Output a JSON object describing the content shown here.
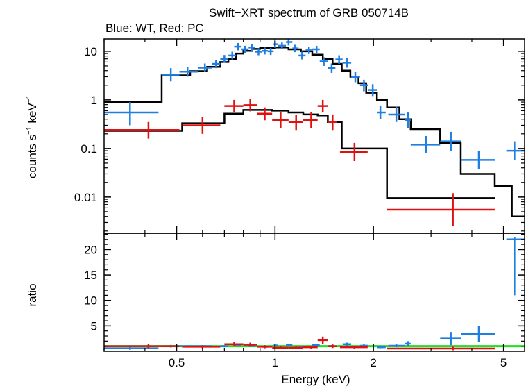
{
  "chart_data": [
    {
      "type": "scatter",
      "panel": "spectrum",
      "title": "Swift−XRT spectrum of GRB 050714B",
      "subtitle": "Blue: WT, Red: PC",
      "xlabel": "Energy (keV)",
      "ylabel_main": "counts s",
      "ylabel_exp1": "−1",
      "ylabel_mid": " keV",
      "ylabel_exp2": "−1",
      "xscale": "log",
      "yscale": "log",
      "xlim": [
        0.3,
        5.8
      ],
      "ylim": [
        0.0018,
        18
      ],
      "x_ticks": [
        {
          "value": 0.5,
          "label": "0.5"
        },
        {
          "value": 1,
          "label": "1"
        },
        {
          "value": 2,
          "label": "2"
        },
        {
          "value": 5,
          "label": "5"
        }
      ],
      "y_ticks": [
        {
          "value": 10,
          "label": "10"
        },
        {
          "value": 1,
          "label": "1"
        },
        {
          "value": 0.1,
          "label": "0.1"
        },
        {
          "value": 0.01,
          "label": "0.01"
        }
      ],
      "series": [
        {
          "name": "WT",
          "color": "#1f7fe0",
          "points": [
            [
              0.36,
              0.3,
              0.44,
              0.55,
              0.3,
              0.9
            ],
            [
              0.48,
              0.45,
              0.51,
              3.3,
              2.4,
              4.5
            ],
            [
              0.54,
              0.51,
              0.58,
              3.8,
              3.0,
              4.8
            ],
            [
              0.61,
              0.58,
              0.64,
              4.6,
              3.8,
              5.6
            ],
            [
              0.66,
              0.64,
              0.68,
              5.5,
              4.5,
              6.6
            ],
            [
              0.7,
              0.68,
              0.72,
              7.0,
              5.8,
              8.4
            ],
            [
              0.74,
              0.72,
              0.76,
              8.2,
              6.8,
              9.8
            ],
            [
              0.77,
              0.75,
              0.79,
              12.5,
              10.5,
              14.8
            ],
            [
              0.81,
              0.79,
              0.83,
              11.0,
              9.2,
              13.0
            ],
            [
              0.85,
              0.83,
              0.87,
              12.0,
              10.2,
              14.0
            ],
            [
              0.89,
              0.87,
              0.91,
              9.8,
              8.3,
              11.5
            ],
            [
              0.93,
              0.91,
              0.95,
              10.2,
              8.6,
              12.0
            ],
            [
              0.97,
              0.95,
              0.99,
              10.0,
              8.4,
              11.8
            ],
            [
              1.0,
              0.99,
              1.02,
              14.0,
              11.8,
              16.5
            ],
            [
              1.05,
              1.02,
              1.08,
              13.0,
              11.0,
              15.2
            ],
            [
              1.1,
              1.08,
              1.13,
              15.5,
              13.2,
              18.0
            ],
            [
              1.15,
              1.13,
              1.18,
              11.5,
              9.6,
              13.6
            ],
            [
              1.21,
              1.18,
              1.24,
              8.2,
              6.8,
              9.8
            ],
            [
              1.27,
              1.24,
              1.3,
              10.5,
              8.8,
              12.4
            ],
            [
              1.34,
              1.3,
              1.37,
              11.0,
              9.2,
              13.0
            ],
            [
              1.41,
              1.37,
              1.45,
              6.2,
              5.0,
              7.6
            ],
            [
              1.49,
              1.45,
              1.53,
              4.5,
              3.6,
              5.6
            ],
            [
              1.57,
              1.53,
              1.61,
              6.8,
              5.5,
              8.3
            ],
            [
              1.66,
              1.61,
              1.71,
              5.8,
              4.6,
              7.2
            ],
            [
              1.76,
              1.71,
              1.82,
              3.0,
              2.3,
              3.8
            ],
            [
              1.87,
              1.82,
              1.93,
              2.0,
              1.5,
              2.6
            ],
            [
              1.99,
              1.93,
              2.05,
              1.6,
              1.2,
              2.1
            ],
            [
              2.1,
              2.05,
              2.18,
              0.55,
              0.4,
              0.75
            ],
            [
              2.35,
              2.22,
              2.5,
              0.5,
              0.35,
              0.72
            ],
            [
              2.55,
              2.5,
              2.6,
              0.38,
              0.26,
              0.55
            ],
            [
              2.9,
              2.6,
              3.2,
              0.12,
              0.08,
              0.18
            ],
            [
              3.45,
              3.2,
              3.7,
              0.14,
              0.09,
              0.22
            ],
            [
              4.2,
              3.7,
              4.7,
              0.058,
              0.038,
              0.09
            ],
            [
              5.4,
              5.1,
              5.8,
              0.09,
              0.058,
              0.14
            ]
          ]
        },
        {
          "name": "PC",
          "color": "#e01010",
          "points": [
            [
              0.41,
              0.3,
              0.51,
              0.24,
              0.16,
              0.35
            ],
            [
              0.6,
              0.52,
              0.68,
              0.3,
              0.2,
              0.45
            ],
            [
              0.75,
              0.7,
              0.8,
              0.75,
              0.55,
              1.0
            ],
            [
              0.84,
              0.8,
              0.88,
              0.78,
              0.58,
              1.05
            ],
            [
              0.93,
              0.88,
              0.98,
              0.52,
              0.38,
              0.7
            ],
            [
              1.04,
              0.98,
              1.1,
              0.38,
              0.26,
              0.55
            ],
            [
              1.16,
              1.1,
              1.22,
              0.35,
              0.24,
              0.5
            ],
            [
              1.29,
              1.22,
              1.35,
              0.38,
              0.26,
              0.55
            ],
            [
              1.4,
              1.35,
              1.45,
              0.75,
              0.55,
              1.0
            ],
            [
              1.5,
              1.45,
              1.55,
              0.35,
              0.24,
              0.5
            ],
            [
              1.75,
              1.58,
              1.92,
              0.085,
              0.055,
              0.13
            ],
            [
              3.5,
              2.2,
              4.7,
              0.0055,
              0.0025,
              0.012
            ]
          ]
        }
      ],
      "models": [
        {
          "name": "WT model",
          "color": "#000000",
          "steps": [
            [
              0.3,
              0.9
            ],
            [
              0.45,
              3.2
            ],
            [
              0.55,
              3.9
            ],
            [
              0.62,
              4.8
            ],
            [
              0.68,
              6.0
            ],
            [
              0.72,
              7.0
            ],
            [
              0.76,
              9.0
            ],
            [
              0.8,
              10.2
            ],
            [
              0.85,
              11.2
            ],
            [
              0.9,
              11.8
            ],
            [
              1.0,
              12.0
            ],
            [
              1.1,
              11.0
            ],
            [
              1.2,
              10.0
            ],
            [
              1.3,
              8.5
            ],
            [
              1.4,
              7.0
            ],
            [
              1.5,
              5.5
            ],
            [
              1.6,
              4.0
            ],
            [
              1.7,
              3.0
            ],
            [
              1.8,
              2.2
            ],
            [
              1.9,
              1.4
            ],
            [
              2.05,
              1.0
            ],
            [
              2.2,
              0.7
            ],
            [
              2.4,
              0.4
            ],
            [
              2.6,
              0.25
            ],
            [
              3.2,
              0.13
            ],
            [
              3.7,
              0.03
            ],
            [
              4.7,
              0.017
            ],
            [
              5.3,
              0.004
            ]
          ],
          "end": 5.8
        },
        {
          "name": "PC model",
          "color": "#000000",
          "steps": [
            [
              0.3,
              0.23
            ],
            [
              0.52,
              0.33
            ],
            [
              0.7,
              0.52
            ],
            [
              0.8,
              0.62
            ],
            [
              0.98,
              0.6
            ],
            [
              1.1,
              0.55
            ],
            [
              1.22,
              0.5
            ],
            [
              1.35,
              0.48
            ],
            [
              1.45,
              0.35
            ],
            [
              1.6,
              0.1
            ],
            [
              2.2,
              0.0095
            ]
          ],
          "end": 4.7
        }
      ]
    },
    {
      "type": "scatter",
      "panel": "ratio",
      "ylabel": "ratio",
      "xscale": "log",
      "yscale": "linear",
      "xlim": [
        0.3,
        5.8
      ],
      "ylim": [
        0,
        23.2
      ],
      "y_ticks": [
        {
          "value": 5,
          "label": "5"
        },
        {
          "value": 10,
          "label": "10"
        },
        {
          "value": 15,
          "label": "15"
        },
        {
          "value": 20,
          "label": "20"
        }
      ],
      "reference_line": {
        "value": 1,
        "color": "#22dd22"
      },
      "series": [
        {
          "name": "WT",
          "color": "#1f7fe0",
          "points": [
            [
              0.36,
              0.3,
              0.44,
              0.6,
              0.3,
              0.9
            ],
            [
              0.48,
              0.45,
              0.51,
              1.0,
              0.75,
              1.25
            ],
            [
              0.54,
              0.51,
              0.58,
              1.0,
              0.8,
              1.2
            ],
            [
              0.61,
              0.58,
              0.64,
              1.0,
              0.8,
              1.2
            ],
            [
              0.7,
              0.68,
              0.72,
              1.0,
              0.8,
              1.2
            ],
            [
              0.77,
              0.75,
              0.79,
              1.2,
              1.0,
              1.4
            ],
            [
              0.85,
              0.83,
              0.87,
              1.05,
              0.9,
              1.2
            ],
            [
              0.93,
              0.91,
              0.95,
              0.9,
              0.75,
              1.05
            ],
            [
              1.0,
              0.99,
              1.02,
              1.15,
              0.95,
              1.35
            ],
            [
              1.1,
              1.08,
              1.13,
              1.3,
              1.1,
              1.5
            ],
            [
              1.21,
              1.18,
              1.24,
              0.85,
              0.7,
              1.0
            ],
            [
              1.34,
              1.3,
              1.37,
              1.2,
              1.0,
              1.4
            ],
            [
              1.49,
              1.45,
              1.53,
              1.0,
              0.8,
              1.2
            ],
            [
              1.66,
              1.61,
              1.71,
              1.4,
              1.1,
              1.7
            ],
            [
              1.87,
              1.82,
              1.93,
              1.1,
              0.8,
              1.4
            ],
            [
              2.1,
              2.05,
              2.18,
              0.8,
              0.6,
              1.0
            ],
            [
              2.35,
              2.22,
              2.5,
              1.1,
              0.8,
              1.4
            ],
            [
              2.55,
              2.5,
              2.6,
              1.5,
              1.0,
              2.0
            ],
            [
              3.45,
              3.2,
              3.7,
              2.5,
              1.2,
              3.8
            ],
            [
              4.2,
              3.7,
              4.7,
              3.4,
              1.9,
              5.0
            ],
            [
              5.4,
              5.1,
              5.8,
              22.0,
              11.0,
              22.5
            ]
          ]
        },
        {
          "name": "PC",
          "color": "#e01010",
          "points": [
            [
              0.41,
              0.3,
              0.51,
              1.0,
              0.6,
              1.4
            ],
            [
              0.6,
              0.52,
              0.68,
              0.9,
              0.6,
              1.2
            ],
            [
              0.75,
              0.7,
              0.8,
              1.4,
              1.0,
              1.8
            ],
            [
              0.84,
              0.8,
              0.88,
              1.3,
              0.9,
              1.7
            ],
            [
              0.93,
              0.88,
              0.98,
              0.9,
              0.6,
              1.2
            ],
            [
              1.04,
              0.98,
              1.1,
              0.7,
              0.45,
              0.95
            ],
            [
              1.16,
              1.1,
              1.22,
              0.7,
              0.45,
              0.95
            ],
            [
              1.29,
              1.22,
              1.35,
              0.8,
              0.55,
              1.05
            ],
            [
              1.4,
              1.35,
              1.45,
              2.2,
              1.5,
              2.9
            ],
            [
              1.5,
              1.45,
              1.55,
              1.0,
              0.65,
              1.35
            ],
            [
              1.75,
              1.58,
              1.92,
              0.8,
              0.5,
              1.1
            ],
            [
              3.5,
              2.2,
              4.7,
              0.55,
              0.2,
              0.9
            ]
          ]
        }
      ]
    }
  ]
}
